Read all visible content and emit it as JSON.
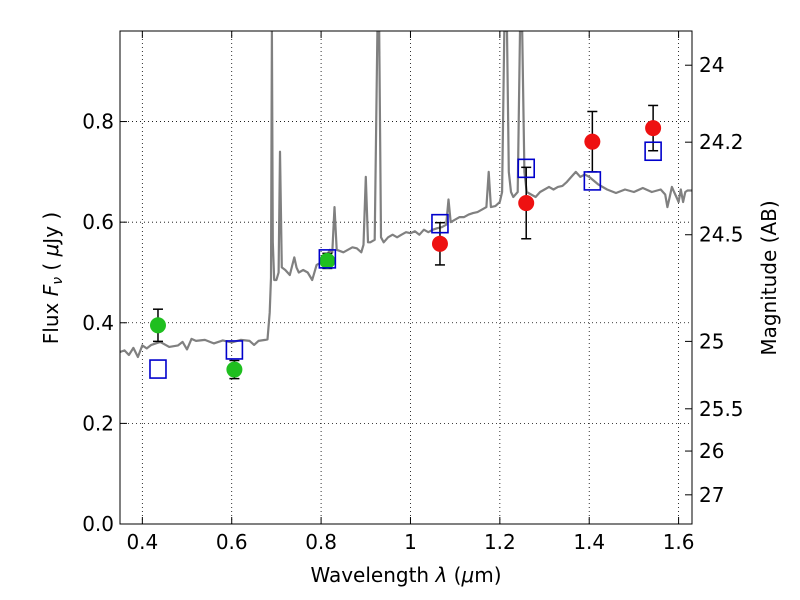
{
  "chart_data": {
    "type": "scatter",
    "xlabel": "Wavelength  λ (μm)",
    "ylabel": "Flux  Fν  ( μJy )",
    "ylabel_right": "Magnitude (AB)",
    "xlim": [
      0.35,
      1.63
    ],
    "ylim": [
      0.0,
      0.98
    ],
    "x_ticks": [
      0.4,
      0.6,
      0.8,
      1.0,
      1.2,
      1.4,
      1.6
    ],
    "x_tick_labels": [
      "0.4",
      "0.6",
      "0.8",
      "1",
      "1.2",
      "1.4",
      "1.6"
    ],
    "y_ticks": [
      0.0,
      0.2,
      0.4,
      0.6,
      0.8
    ],
    "y_tick_labels": [
      "0.0",
      "0.2",
      "0.4",
      "0.6",
      "0.8"
    ],
    "right_ticks": [
      {
        "label": "24",
        "flux": 0.912
      },
      {
        "label": "24.2",
        "flux": 0.759
      },
      {
        "label": "24.5",
        "flux": 0.575
      },
      {
        "label": "25",
        "flux": 0.363
      },
      {
        "label": "25.5",
        "flux": 0.229
      },
      {
        "label": "26",
        "flux": 0.145
      },
      {
        "label": "27",
        "flux": 0.058
      }
    ],
    "grid": true,
    "grid_style": "dotted",
    "colors": {
      "spectrum": "#808080",
      "green_points": "#1fbf1f",
      "red_points": "#ee1111",
      "model_squares": "#0000cc",
      "error_bars": "#000000"
    },
    "series": [
      {
        "kind": "points",
        "color": "#1fbf1f",
        "points": [
          {
            "x": 0.435,
            "y": 0.395,
            "err": 0.032
          },
          {
            "x": 0.606,
            "y": 0.307,
            "err": 0.018
          },
          {
            "x": 0.814,
            "y": 0.523,
            "err": 0.015
          }
        ]
      },
      {
        "kind": "points",
        "color": "#ee1111",
        "points": [
          {
            "x": 1.066,
            "y": 0.557,
            "err": 0.042
          },
          {
            "x": 1.259,
            "y": 0.638,
            "err": 0.071
          },
          {
            "x": 1.407,
            "y": 0.76,
            "err": 0.06
          },
          {
            "x": 1.543,
            "y": 0.787,
            "err": 0.045
          }
        ]
      },
      {
        "kind": "squares",
        "color": "#0000cc",
        "points": [
          {
            "x": 0.435,
            "y": 0.308
          },
          {
            "x": 0.606,
            "y": 0.346
          },
          {
            "x": 0.814,
            "y": 0.527
          },
          {
            "x": 1.066,
            "y": 0.597
          },
          {
            "x": 1.259,
            "y": 0.707
          },
          {
            "x": 1.407,
            "y": 0.682
          },
          {
            "x": 1.543,
            "y": 0.741
          }
        ]
      },
      {
        "kind": "line",
        "color": "#808080",
        "points": [
          [
            0.35,
            0.342
          ],
          [
            0.36,
            0.345
          ],
          [
            0.37,
            0.336
          ],
          [
            0.38,
            0.35
          ],
          [
            0.39,
            0.332
          ],
          [
            0.4,
            0.355
          ],
          [
            0.41,
            0.349
          ],
          [
            0.42,
            0.356
          ],
          [
            0.44,
            0.362
          ],
          [
            0.46,
            0.352
          ],
          [
            0.48,
            0.355
          ],
          [
            0.49,
            0.362
          ],
          [
            0.5,
            0.347
          ],
          [
            0.51,
            0.368
          ],
          [
            0.52,
            0.364
          ],
          [
            0.54,
            0.366
          ],
          [
            0.56,
            0.359
          ],
          [
            0.58,
            0.365
          ],
          [
            0.6,
            0.361
          ],
          [
            0.62,
            0.366
          ],
          [
            0.64,
            0.364
          ],
          [
            0.65,
            0.356
          ],
          [
            0.66,
            0.364
          ],
          [
            0.675,
            0.366
          ],
          [
            0.68,
            0.367
          ],
          [
            0.685,
            0.42
          ],
          [
            0.688,
            0.49
          ],
          [
            0.69,
            0.98
          ],
          [
            0.692,
            0.56
          ],
          [
            0.695,
            0.485
          ],
          [
            0.7,
            0.485
          ],
          [
            0.705,
            0.5
          ],
          [
            0.708,
            0.74
          ],
          [
            0.712,
            0.51
          ],
          [
            0.72,
            0.505
          ],
          [
            0.73,
            0.495
          ],
          [
            0.74,
            0.53
          ],
          [
            0.745,
            0.51
          ],
          [
            0.75,
            0.5
          ],
          [
            0.76,
            0.505
          ],
          [
            0.77,
            0.5
          ],
          [
            0.78,
            0.485
          ],
          [
            0.79,
            0.515
          ],
          [
            0.8,
            0.52
          ],
          [
            0.808,
            0.535
          ],
          [
            0.815,
            0.538
          ],
          [
            0.82,
            0.545
          ],
          [
            0.825,
            0.54
          ],
          [
            0.83,
            0.63
          ],
          [
            0.835,
            0.545
          ],
          [
            0.85,
            0.54
          ],
          [
            0.86,
            0.545
          ],
          [
            0.87,
            0.55
          ],
          [
            0.88,
            0.548
          ],
          [
            0.89,
            0.54
          ],
          [
            0.895,
            0.555
          ],
          [
            0.9,
            0.69
          ],
          [
            0.905,
            0.56
          ],
          [
            0.91,
            0.56
          ],
          [
            0.92,
            0.565
          ],
          [
            0.926,
            0.98
          ],
          [
            0.93,
            0.98
          ],
          [
            0.934,
            0.57
          ],
          [
            0.94,
            0.56
          ],
          [
            0.95,
            0.57
          ],
          [
            0.96,
            0.575
          ],
          [
            0.97,
            0.57
          ],
          [
            0.98,
            0.575
          ],
          [
            0.99,
            0.58
          ],
          [
            1.0,
            0.578
          ],
          [
            1.01,
            0.582
          ],
          [
            1.02,
            0.575
          ],
          [
            1.03,
            0.585
          ],
          [
            1.04,
            0.58
          ],
          [
            1.05,
            0.585
          ],
          [
            1.06,
            0.588
          ],
          [
            1.07,
            0.59
          ],
          [
            1.08,
            0.595
          ],
          [
            1.085,
            0.645
          ],
          [
            1.09,
            0.6
          ],
          [
            1.1,
            0.605
          ],
          [
            1.11,
            0.61
          ],
          [
            1.12,
            0.61
          ],
          [
            1.13,
            0.615
          ],
          [
            1.14,
            0.618
          ],
          [
            1.15,
            0.62
          ],
          [
            1.16,
            0.625
          ],
          [
            1.17,
            0.63
          ],
          [
            1.175,
            0.7
          ],
          [
            1.18,
            0.63
          ],
          [
            1.19,
            0.632
          ],
          [
            1.2,
            0.64
          ],
          [
            1.205,
            0.66
          ],
          [
            1.21,
            0.98
          ],
          [
            1.216,
            0.98
          ],
          [
            1.22,
            0.7
          ],
          [
            1.225,
            0.66
          ],
          [
            1.23,
            0.65
          ],
          [
            1.24,
            0.66
          ],
          [
            1.245,
            0.98
          ],
          [
            1.25,
            0.98
          ],
          [
            1.255,
            0.7
          ],
          [
            1.26,
            0.66
          ],
          [
            1.27,
            0.655
          ],
          [
            1.28,
            0.65
          ],
          [
            1.29,
            0.66
          ],
          [
            1.3,
            0.665
          ],
          [
            1.31,
            0.67
          ],
          [
            1.32,
            0.665
          ],
          [
            1.33,
            0.67
          ],
          [
            1.34,
            0.672
          ],
          [
            1.35,
            0.68
          ],
          [
            1.36,
            0.69
          ],
          [
            1.37,
            0.7
          ],
          [
            1.38,
            0.69
          ],
          [
            1.39,
            0.695
          ],
          [
            1.4,
            0.69
          ],
          [
            1.42,
            0.675
          ],
          [
            1.44,
            0.665
          ],
          [
            1.46,
            0.658
          ],
          [
            1.48,
            0.665
          ],
          [
            1.5,
            0.66
          ],
          [
            1.52,
            0.668
          ],
          [
            1.54,
            0.66
          ],
          [
            1.56,
            0.665
          ],
          [
            1.57,
            0.655
          ],
          [
            1.575,
            0.63
          ],
          [
            1.58,
            0.65
          ],
          [
            1.585,
            0.67
          ],
          [
            1.59,
            0.66
          ],
          [
            1.595,
            0.65
          ],
          [
            1.6,
            0.64
          ],
          [
            1.605,
            0.665
          ],
          [
            1.61,
            0.64
          ],
          [
            1.615,
            0.66
          ],
          [
            1.62,
            0.663
          ],
          [
            1.63,
            0.663
          ]
        ]
      }
    ]
  }
}
